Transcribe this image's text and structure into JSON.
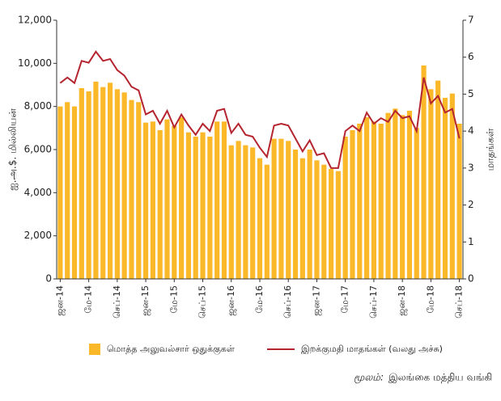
{
  "chart_data": {
    "type": "bar_line",
    "y_label": "ஐ.அ.$. மில்லியன்",
    "y2_label": "மாதங்கள்",
    "categories": [
      "ஜன-14",
      null,
      null,
      null,
      "மே-14",
      null,
      null,
      null,
      "செப்-14",
      null,
      null,
      null,
      "ஜன-15",
      null,
      null,
      null,
      "மே-15",
      null,
      null,
      null,
      "செப்-15",
      null,
      null,
      null,
      "ஜன-16",
      null,
      null,
      null,
      "மே-16",
      null,
      null,
      null,
      "செப்-16",
      null,
      null,
      null,
      "ஜன-17",
      null,
      null,
      null,
      "மே-17",
      null,
      null,
      null,
      "செப்-17",
      null,
      null,
      null,
      "ஜன-18",
      null,
      null,
      null,
      "மே-18",
      null,
      null,
      null,
      "செப்-18"
    ],
    "series": [
      {
        "name": "மொத்த அலுவல்சார் ஒதுக்குகள்",
        "color": "#fbb829",
        "type": "bar",
        "values": [
          8000,
          8200,
          8000,
          8850,
          8700,
          9150,
          8900,
          9100,
          8800,
          8650,
          8300,
          8200,
          7250,
          7300,
          6900,
          7400,
          7100,
          7500,
          6800,
          6600,
          6800,
          6600,
          7300,
          7300,
          6200,
          6400,
          6200,
          6100,
          5600,
          5300,
          6500,
          6500,
          6400,
          6000,
          5600,
          6000,
          5500,
          5300,
          5100,
          5000,
          6600,
          6900,
          7200,
          7500,
          7300,
          7200,
          7700,
          7900,
          7600,
          7800,
          7000,
          9900,
          8800,
          9200,
          8400,
          8600,
          7200
        ]
      },
      {
        "name": "இறக்குமதி மாதங்கள் (வலது அச்சு)",
        "color": "#b5252f",
        "type": "line",
        "axis": "y2",
        "values": [
          5.3,
          5.45,
          5.3,
          5.9,
          5.85,
          6.15,
          5.9,
          5.95,
          5.65,
          5.5,
          5.2,
          5.1,
          4.45,
          4.55,
          4.2,
          4.55,
          4.1,
          4.45,
          4.15,
          3.9,
          4.2,
          4.0,
          4.55,
          4.6,
          3.95,
          4.2,
          3.9,
          3.85,
          3.55,
          3.3,
          4.15,
          4.2,
          4.15,
          3.8,
          3.45,
          3.75,
          3.35,
          3.4,
          3.0,
          3.0,
          4.0,
          4.15,
          4.0,
          4.5,
          4.2,
          4.35,
          4.25,
          4.55,
          4.35,
          4.4,
          4.0,
          5.45,
          4.75,
          4.95,
          4.5,
          4.6,
          3.8
        ]
      }
    ],
    "ylim": [
      0,
      12000
    ],
    "yticks": [
      0,
      {
        "value": 2000,
        "label": "2,000"
      },
      {
        "value": 4000,
        "label": "4,000"
      },
      {
        "value": 6000,
        "label": "6,000"
      },
      {
        "value": 8000,
        "label": "8,000"
      },
      {
        "value": 10000,
        "label": "10,000"
      },
      {
        "value": 12000,
        "label": "12,000"
      }
    ],
    "y2lim": [
      0,
      7
    ],
    "y2ticks": [
      0,
      1,
      2,
      3,
      4,
      5,
      6,
      7
    ],
    "source_label": "மூலம்:",
    "source_text": "இலங்கை மத்திய வங்கி"
  }
}
